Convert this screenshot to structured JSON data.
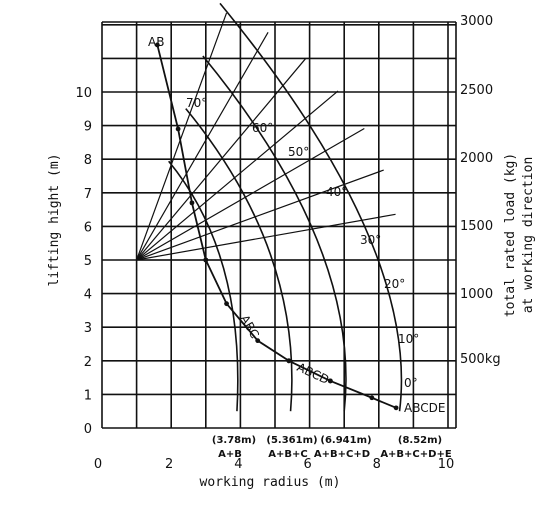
{
  "chart_data": {
    "type": "line",
    "title": "",
    "xlabel": "working radius (m)",
    "ylabel": "lifting hight (m)",
    "y2label_line1": "total rated load (kg)",
    "y2label_line2": "at working direction",
    "xlim": [
      0,
      10
    ],
    "ylim": [
      0,
      12
    ],
    "grid": true,
    "x_ticks": [
      "0",
      "2",
      "4",
      "6",
      "8",
      "10"
    ],
    "y_ticks": [
      "0",
      "1",
      "2",
      "3",
      "4",
      "5",
      "6",
      "7",
      "8",
      "9",
      "10"
    ],
    "y2_ticks": [
      "500kg",
      "1000",
      "1500",
      "2000",
      "2500",
      "3000"
    ],
    "angle_labels": [
      "0°",
      "10°",
      "20°",
      "30°",
      "40°",
      "50°",
      "60°",
      "70°"
    ],
    "boom_sections": [
      {
        "label": "(3.78m)",
        "combo": "A+B",
        "radius_m": 3.78
      },
      {
        "label": "(5.361m)",
        "combo": "A+B+C",
        "radius_m": 5.361
      },
      {
        "label": "(6.941m)",
        "combo": "A+B+C+D",
        "radius_m": 6.941
      },
      {
        "label": "(8.52m)",
        "combo": "A+B+C+D+E",
        "radius_m": 8.52
      }
    ],
    "load_curve_labels": [
      "AB",
      "ABC",
      "ABCD",
      "ABCDE"
    ],
    "series": [
      {
        "name": "AB",
        "x": [
          1.6,
          2.2,
          2.6,
          3.0
        ],
        "y": [
          11.4,
          8.9,
          6.7,
          5.0
        ]
      },
      {
        "name": "ABC",
        "x": [
          3.0,
          3.6,
          4.5,
          5.4
        ],
        "y": [
          5.0,
          3.7,
          2.6,
          2.0
        ]
      },
      {
        "name": "ABCD",
        "x": [
          5.4,
          6.6
        ],
        "y": [
          2.0,
          1.4
        ]
      },
      {
        "name": "ABCDE",
        "x": [
          6.6,
          7.8,
          8.5
        ],
        "y": [
          1.4,
          0.9,
          0.6
        ]
      }
    ]
  }
}
